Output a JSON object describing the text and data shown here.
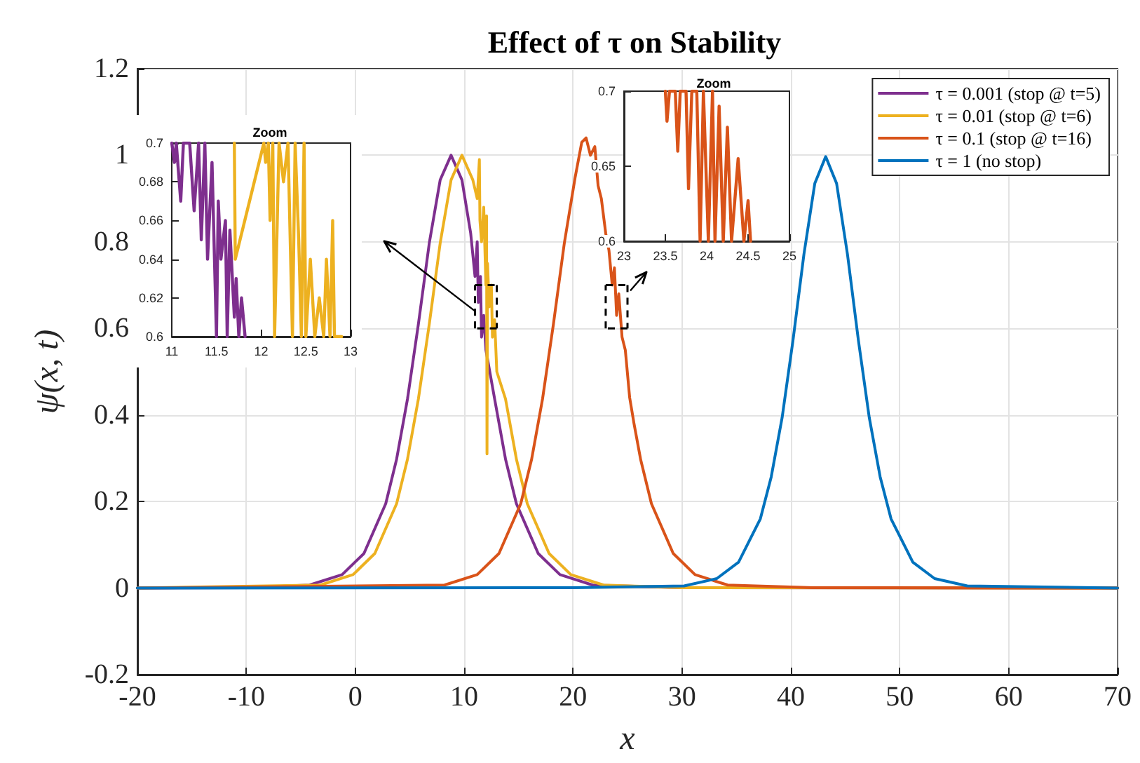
{
  "chart_data": [
    {
      "type": "line",
      "title": "Effect of τ on Stability",
      "xlabel": "x",
      "ylabel": "ψ(x, t)",
      "xlim": [
        -20,
        70
      ],
      "xticks": [
        -20,
        -10,
        0,
        10,
        20,
        30,
        40,
        50,
        60,
        70
      ],
      "ylim": [
        -0.2,
        1.2
      ],
      "yticks": [
        -0.2,
        0,
        0.2,
        0.4,
        0.6,
        0.8,
        1,
        1.2
      ],
      "grid": true,
      "legend": "top right",
      "marker": "none",
      "line_style": "solid",
      "series": [
        {
          "name": "τ = 0.001 (stop @ t=5)",
          "color": "#7e2f8e",
          "x": [
            -20,
            -10,
            -4.2,
            -1.2,
            0.8,
            2.8,
            3.8,
            4.8,
            5.8,
            6.8,
            7.8,
            8.8,
            9.8,
            10.6,
            11.0,
            11.2,
            11.3,
            11.5,
            11.6,
            11.8,
            12.0,
            12.8,
            13.8,
            14.8,
            16.8,
            18.8,
            21.8,
            30,
            70
          ],
          "values": [
            0,
            0.001,
            0.007,
            0.031,
            0.08,
            0.195,
            0.298,
            0.437,
            0.61,
            0.797,
            0.943,
            1,
            0.943,
            0.82,
            0.72,
            0.8,
            0.66,
            0.72,
            0.58,
            0.63,
            0.55,
            0.437,
            0.298,
            0.195,
            0.08,
            0.031,
            0.007,
            0.001,
            0
          ]
        },
        {
          "name": "τ = 0.01 (stop @ t=6)",
          "color": "#edb120",
          "x": [
            -20,
            -3.2,
            -0.2,
            1.8,
            3.8,
            4.8,
            5.8,
            6.8,
            7.8,
            8.8,
            9.8,
            10.8,
            11.2,
            11.4,
            11.45,
            11.6,
            11.8,
            12.0,
            12.06,
            12.1,
            12.15,
            12.3,
            12.5,
            12.6,
            12.8,
            13.0,
            13.8,
            14.8,
            15.8,
            17.8,
            19.8,
            22.8,
            30,
            70
          ],
          "values": [
            0,
            0.007,
            0.031,
            0.08,
            0.195,
            0.298,
            0.437,
            0.61,
            0.797,
            0.943,
            1,
            0.943,
            0.9,
            0.99,
            0.85,
            0.8,
            0.88,
            0.7,
            0.86,
            0.31,
            0.75,
            0.65,
            0.7,
            0.58,
            0.62,
            0.5,
            0.437,
            0.298,
            0.195,
            0.08,
            0.031,
            0.007,
            0.001,
            0
          ]
        },
        {
          "name": "τ = 0.1 (stop @ t=16)",
          "color": "#d95319",
          "x": [
            -20,
            8.2,
            11.2,
            13.2,
            15.2,
            16.2,
            17.2,
            18.2,
            19.2,
            20.2,
            20.8,
            21.2,
            21.6,
            22.0,
            22.3,
            22.6,
            23.0,
            23.3,
            23.6,
            23.8,
            24.0,
            24.2,
            24.5,
            24.8,
            25.2,
            25.6,
            26.2,
            27.2,
            29.2,
            31.2,
            34.2,
            42,
            70
          ],
          "values": [
            0,
            0.007,
            0.031,
            0.08,
            0.195,
            0.298,
            0.437,
            0.61,
            0.797,
            0.95,
            1.03,
            1.04,
            1.0,
            1.02,
            0.93,
            0.9,
            0.82,
            0.78,
            0.7,
            0.74,
            0.63,
            0.68,
            0.58,
            0.55,
            0.44,
            0.38,
            0.298,
            0.195,
            0.08,
            0.031,
            0.007,
            0.001,
            0
          ]
        },
        {
          "name": "τ = 1 (no stop)",
          "color": "#0072bd",
          "x": [
            -20,
            20,
            30.2,
            33.2,
            35.2,
            37.2,
            38.2,
            39.2,
            40.2,
            41.2,
            42.2,
            43.2,
            44.2,
            45.2,
            46.2,
            47.2,
            48.2,
            49.2,
            51.2,
            53.2,
            56.2,
            70
          ],
          "values": [
            0,
            0.001,
            0.005,
            0.022,
            0.06,
            0.16,
            0.257,
            0.394,
            0.573,
            0.771,
            0.935,
            0.997,
            0.935,
            0.771,
            0.573,
            0.394,
            0.257,
            0.16,
            0.06,
            0.022,
            0.005,
            0
          ]
        }
      ]
    },
    {
      "type": "line",
      "title": "Zoom",
      "xlim": [
        11,
        13
      ],
      "xticks": [
        11,
        11.5,
        12,
        12.5,
        13
      ],
      "ylim": [
        0.6,
        0.7
      ],
      "yticks": [
        0.6,
        0.62,
        0.64,
        0.66,
        0.68,
        0.7
      ],
      "marker": "none",
      "line_style": "solid",
      "series": [
        {
          "color": "#7e2f8e",
          "x": [
            11.0,
            11.03,
            11.05,
            11.1,
            11.13,
            11.2,
            11.25,
            11.3,
            11.33,
            11.37,
            11.4,
            11.45,
            11.5,
            11.52,
            11.55,
            11.6,
            11.62,
            11.65,
            11.7,
            11.72,
            11.75,
            11.78,
            11.82
          ],
          "values": [
            0.7,
            0.69,
            0.7,
            0.67,
            0.7,
            0.7,
            0.665,
            0.7,
            0.65,
            0.7,
            0.64,
            0.69,
            0.6,
            0.67,
            0.64,
            0.66,
            0.6,
            0.655,
            0.61,
            0.63,
            0.6,
            0.62,
            0.6
          ]
        },
        {
          "color": "#edb120",
          "x": [
            11.7,
            11.71,
            12.03,
            12.05,
            12.08,
            12.1,
            12.13,
            12.15,
            12.2,
            12.25,
            12.3,
            12.35,
            12.38,
            12.42,
            12.45,
            12.48,
            12.5,
            12.55,
            12.6,
            12.65,
            12.7,
            12.73,
            12.77,
            12.8,
            12.82,
            12.87,
            12.9
          ],
          "values": [
            0.7,
            0.64,
            0.7,
            0.69,
            0.7,
            0.66,
            0.7,
            0.6,
            0.7,
            0.68,
            0.7,
            0.6,
            0.7,
            0.65,
            0.6,
            0.7,
            0.6,
            0.64,
            0.6,
            0.62,
            0.6,
            0.64,
            0.6,
            0.66,
            0.6,
            0.6,
            0.6
          ]
        }
      ]
    },
    {
      "type": "line",
      "title": "Zoom",
      "xlim": [
        23,
        25
      ],
      "xticks": [
        23,
        23.5,
        24,
        24.5,
        25
      ],
      "ylim": [
        0.6,
        0.7
      ],
      "yticks": [
        0.6,
        0.65,
        0.7
      ],
      "marker": "none",
      "line_style": "solid",
      "series": [
        {
          "color": "#d95319",
          "x": [
            23.5,
            23.52,
            23.55,
            23.62,
            23.65,
            23.68,
            23.75,
            23.78,
            23.82,
            23.88,
            23.92,
            23.96,
            24.02,
            24.07,
            24.1,
            24.15,
            24.2,
            24.25,
            24.3,
            24.38,
            24.45,
            24.5,
            24.53
          ],
          "values": [
            0.7,
            0.68,
            0.7,
            0.7,
            0.66,
            0.7,
            0.7,
            0.635,
            0.7,
            0.7,
            0.6,
            0.7,
            0.6,
            0.7,
            0.6,
            0.69,
            0.6,
            0.676,
            0.6,
            0.655,
            0.6,
            0.627,
            0.6
          ]
        }
      ]
    }
  ]
}
